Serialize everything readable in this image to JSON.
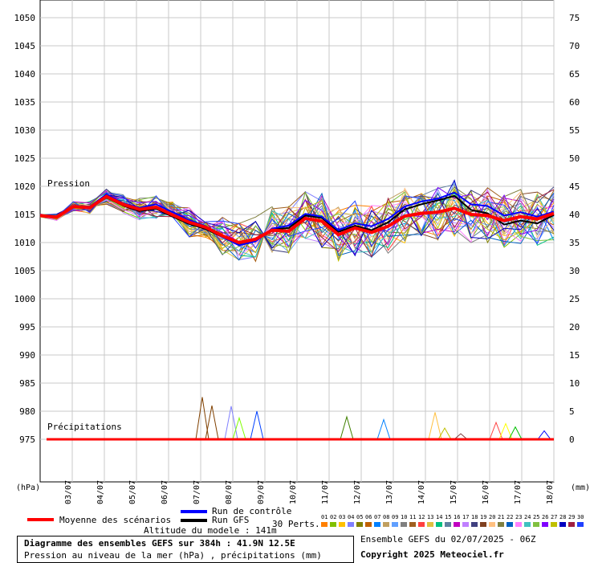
{
  "chart_data": {
    "type": "line",
    "title": "Diagramme des ensembles GEFS sur 384h : 41.9N 12.5E",
    "subtitle": "Pression au niveau de la mer (hPa) , précipitations (mm)",
    "left_axis": {
      "unit": "(hPa)",
      "ticks": [
        1050,
        1045,
        1040,
        1035,
        1030,
        1025,
        1020,
        1015,
        1010,
        1005,
        1000,
        995,
        990,
        985,
        980,
        975
      ],
      "ylim": [
        972,
        1050
      ]
    },
    "right_axis": {
      "unit": "(mm)",
      "ticks": [
        75,
        70,
        65,
        60,
        55,
        50,
        45,
        40,
        35,
        30,
        25,
        20,
        15,
        10,
        5,
        0
      ],
      "ylim": [
        -3.5,
        75
      ]
    },
    "x_ticks": [
      "03/07",
      "04/07",
      "05/07",
      "06/07",
      "07/07",
      "08/07",
      "09/07",
      "10/07",
      "11/07",
      "12/07",
      "13/07",
      "14/07",
      "15/07",
      "16/07",
      "17/07",
      "18/07"
    ],
    "panel_labels": {
      "pressure": "Pression",
      "precip": "Précipitations"
    },
    "series": [
      {
        "name": "Moyenne des scénarios",
        "color": "#ff0000",
        "pressure": [
          1014.8,
          1014.5,
          1016.4,
          1016.2,
          1018.2,
          1016.8,
          1015.9,
          1016.3,
          1014.9,
          1013.6,
          1012.7,
          1011.2,
          1010.0,
          1010.6,
          1012.2,
          1012.0,
          1014.3,
          1013.8,
          1011.4,
          1012.6,
          1011.8,
          1012.9,
          1014.7,
          1015.2,
          1015.4,
          1016.1,
          1015.0,
          1014.8,
          1013.9,
          1014.6,
          1014.2,
          1015.2
        ]
      },
      {
        "name": "Run de contrôle",
        "color": "#0000ff",
        "pressure": [
          1014.9,
          1014.6,
          1016.5,
          1016.4,
          1018.6,
          1017.0,
          1016.2,
          1016.8,
          1015.4,
          1014.0,
          1012.9,
          1011.0,
          1009.5,
          1010.2,
          1012.5,
          1013.0,
          1015.1,
          1014.6,
          1012.2,
          1013.4,
          1012.9,
          1014.2,
          1016.4,
          1017.3,
          1017.8,
          1018.9,
          1016.8,
          1016.5,
          1014.8,
          1015.4,
          1014.6,
          1015.5
        ]
      },
      {
        "name": "Run GFS",
        "color": "#000000",
        "pressure": [
          1014.8,
          1014.6,
          1016.3,
          1016.1,
          1018.0,
          1016.6,
          1015.6,
          1016.0,
          1014.6,
          1013.3,
          1012.4,
          1011.0,
          1009.8,
          1010.5,
          1012.3,
          1012.6,
          1014.8,
          1014.4,
          1011.9,
          1013.0,
          1012.2,
          1013.6,
          1015.9,
          1016.8,
          1017.5,
          1018.3,
          1015.8,
          1015.2,
          1013.2,
          1013.9,
          1013.4,
          1014.9
        ]
      }
    ],
    "perturbation_precip_peaks": [
      {
        "x": 5.05,
        "mm": 7.5,
        "color": "#804000"
      },
      {
        "x": 5.35,
        "mm": 6.0,
        "color": "#804000"
      },
      {
        "x": 5.95,
        "mm": 5.9,
        "color": "#8080ff"
      },
      {
        "x": 6.2,
        "mm": 3.8,
        "color": "#80ff00"
      },
      {
        "x": 6.75,
        "mm": 5.0,
        "color": "#0040ff"
      },
      {
        "x": 9.55,
        "mm": 4.0,
        "color": "#408000"
      },
      {
        "x": 10.7,
        "mm": 3.5,
        "color": "#0080ff"
      },
      {
        "x": 12.3,
        "mm": 4.8,
        "color": "#ffc040"
      },
      {
        "x": 12.6,
        "mm": 2.0,
        "color": "#c0c000"
      },
      {
        "x": 13.1,
        "mm": 1.0,
        "color": "#804040"
      },
      {
        "x": 14.2,
        "mm": 3.0,
        "color": "#ff4040"
      },
      {
        "x": 14.5,
        "mm": 2.8,
        "color": "#ffff00"
      },
      {
        "x": 14.8,
        "mm": 2.2,
        "color": "#00c000"
      },
      {
        "x": 15.7,
        "mm": 1.5,
        "color": "#0000ff"
      }
    ],
    "legend": {
      "control": "Run de contrôle",
      "gfs": "Run GFS",
      "mean": "Moyenne des scénarios",
      "perts": "30 Perts.",
      "altitude": "Altitude du modele : 141m"
    },
    "pert_colors": [
      "#ff8000",
      "#80c000",
      "#ffc000",
      "#8080ff",
      "#808000",
      "#c06000",
      "#0080ff",
      "#c0a060",
      "#60a0ff",
      "#808080",
      "#a06020",
      "#ff4040",
      "#e0c040",
      "#00c080",
      "#6080a0",
      "#c000c0",
      "#c080ff",
      "#404080",
      "#804020",
      "#ffc080",
      "#808040",
      "#0060c0",
      "#ff80ff",
      "#40c0c0",
      "#80c040",
      "#8000ff",
      "#c0c000",
      "#0000c0",
      "#a02040",
      "#2040ff"
    ]
  },
  "header_info": {
    "run": "Ensemble GEFS du 02/07/2025 - 06Z",
    "copyright": "Copyright 2025 Meteociel.fr"
  }
}
